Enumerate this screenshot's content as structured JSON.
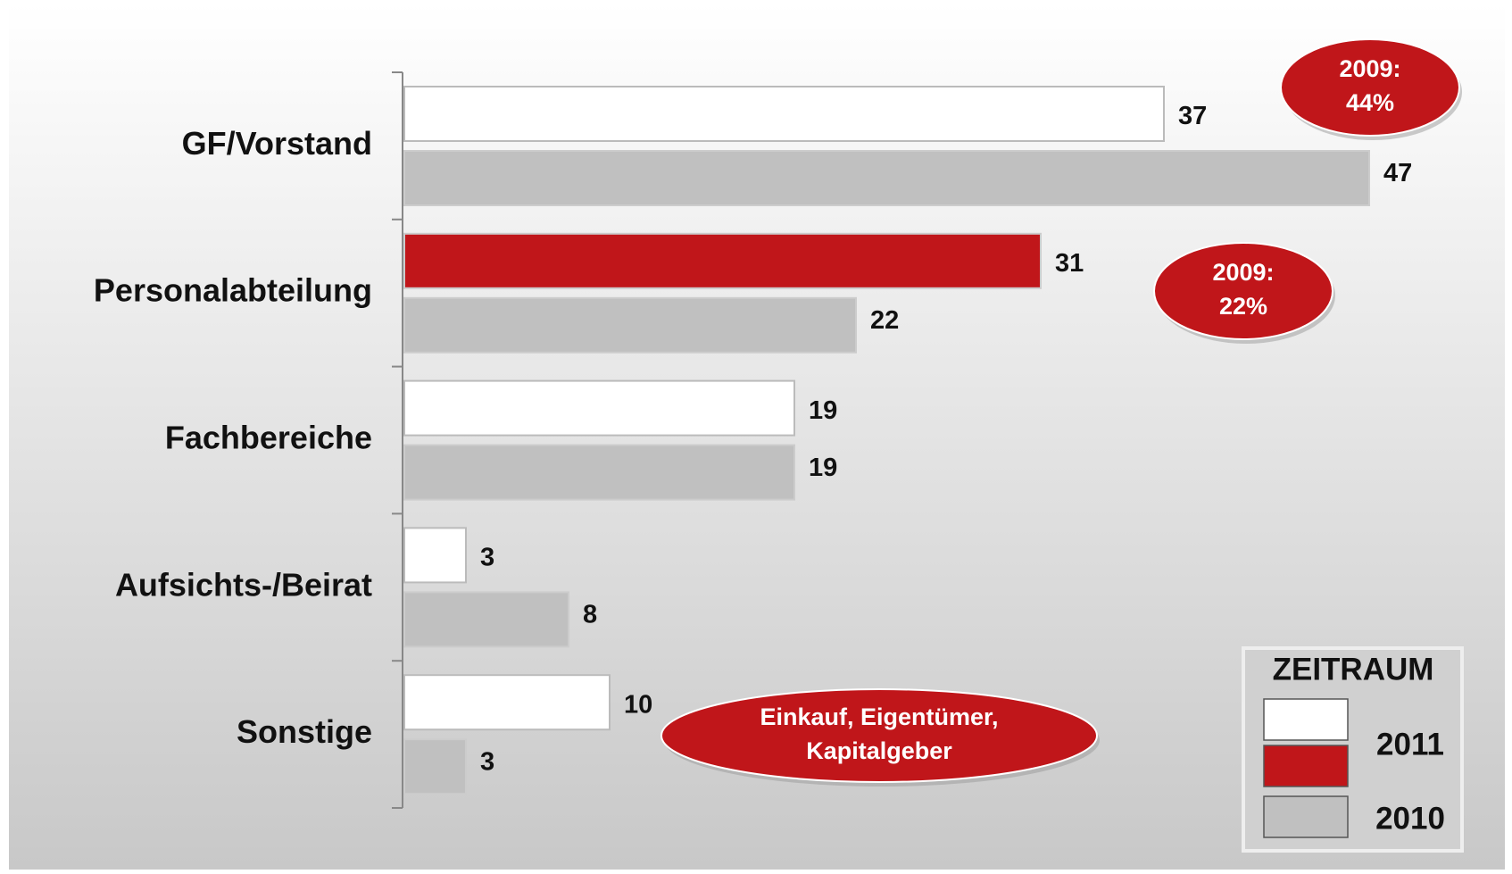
{
  "chart_data": {
    "type": "hbar",
    "categories": [
      "GF/Vorstand",
      "Personalabteilung",
      "Fachbereiche",
      "Aufsichts-/Beirat",
      "Sonstige"
    ],
    "series": [
      {
        "name": "2011",
        "colors": [
          "#ffffff",
          "#c0161a",
          "#ffffff",
          "#ffffff",
          "#ffffff"
        ],
        "values": [
          37,
          31,
          19,
          3,
          10
        ]
      },
      {
        "name": "2010",
        "colors": [
          "#c0c0c0",
          "#c0c0c0",
          "#c0c0c0",
          "#c0c0c0",
          "#c0c0c0"
        ],
        "values": [
          47,
          22,
          19,
          8,
          3
        ]
      }
    ],
    "xlim": [
      0,
      50
    ],
    "legend_title": "ZEITRAUM",
    "annotations": [
      {
        "lines": [
          "2009:",
          "44%"
        ]
      },
      {
        "lines": [
          "2009:",
          "22%"
        ]
      },
      {
        "lines": [
          "Einkauf, Eigentümer,",
          "Kapitalgeber"
        ]
      }
    ]
  }
}
